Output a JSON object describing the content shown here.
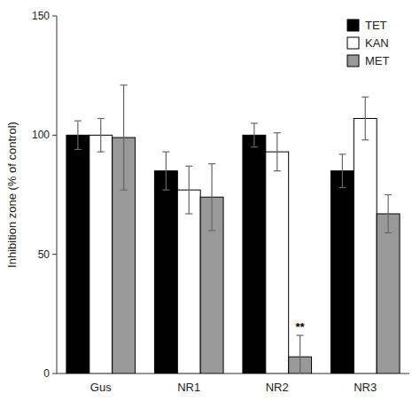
{
  "chart_data": {
    "type": "bar",
    "categories": [
      "Gus",
      "NR1",
      "NR2",
      "NR3"
    ],
    "series": [
      {
        "name": "TET",
        "color": "#000000",
        "values": [
          100,
          85,
          100,
          85
        ],
        "errors": [
          6,
          8,
          5,
          7
        ]
      },
      {
        "name": "KAN",
        "color": "#ffffff",
        "values": [
          100,
          77,
          93,
          107
        ],
        "errors": [
          7,
          10,
          8,
          9
        ]
      },
      {
        "name": "MET",
        "color": "#999999",
        "values": [
          99,
          74,
          7,
          67
        ],
        "errors": [
          22,
          14,
          9,
          8
        ]
      }
    ],
    "y_label": "Inhibition zone (% of control)",
    "ylim": [
      0,
      150
    ],
    "yticks": [
      0,
      50,
      100,
      150
    ],
    "annotations": [
      {
        "text": "**",
        "category": "NR2",
        "series": "MET"
      }
    ],
    "legend": "upper-right",
    "grid": false
  }
}
